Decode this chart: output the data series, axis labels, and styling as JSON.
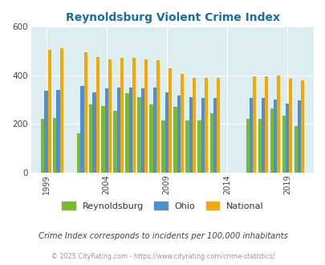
{
  "title": "Reynoldsburg Violent Crime Index",
  "subtitle": "Crime Index corresponds to incidents per 100,000 inhabitants",
  "footer": "© 2025 CityRating.com - https://www.cityrating.com/crime-statistics/",
  "years": [
    1999,
    2000,
    2002,
    2003,
    2004,
    2005,
    2006,
    2007,
    2008,
    2009,
    2010,
    2011,
    2012,
    2013,
    2016,
    2017,
    2018,
    2019,
    2020
  ],
  "reynoldsburg": [
    220,
    225,
    160,
    280,
    275,
    255,
    325,
    310,
    280,
    215,
    270,
    215,
    215,
    245,
    220,
    220,
    265,
    235,
    192
  ],
  "ohio": [
    335,
    340,
    355,
    330,
    345,
    350,
    350,
    345,
    350,
    330,
    315,
    310,
    305,
    305,
    305,
    305,
    300,
    285,
    298
  ],
  "national": [
    505,
    510,
    495,
    475,
    465,
    470,
    470,
    465,
    460,
    430,
    405,
    390,
    388,
    390,
    397,
    397,
    398,
    385,
    378
  ],
  "colors": {
    "reynoldsburg": "#7db832",
    "ohio": "#4e8fcc",
    "national": "#f5a800"
  },
  "ylim": [
    0,
    600
  ],
  "yticks": [
    0,
    200,
    400,
    600
  ],
  "xtick_year_labels": [
    "1999",
    "2004",
    "2009",
    "2014",
    "2019"
  ],
  "xtick_years": [
    1999,
    2004,
    2009,
    2014,
    2019
  ],
  "plot_bg": "#ddeef3",
  "title_color": "#1a6ea8",
  "subtitle_color": "#444444",
  "footer_color": "#999999"
}
